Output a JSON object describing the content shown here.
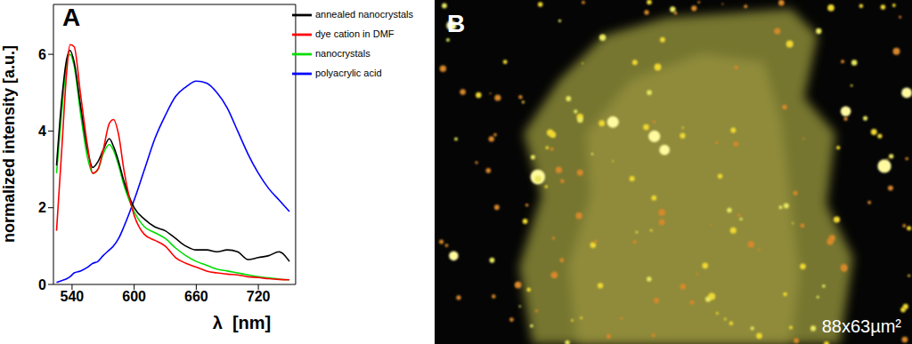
{
  "chart_data": {
    "type": "line",
    "title": "A",
    "x_label": "λ  [nm]",
    "y_label": "normalized intensity [a.u.]",
    "x": [
      525,
      530,
      535,
      538,
      542,
      548,
      555,
      560,
      565,
      570,
      576,
      580,
      585,
      590,
      600,
      610,
      620,
      630,
      640,
      650,
      660,
      670,
      680,
      690,
      700,
      710,
      720,
      730,
      740,
      750
    ],
    "xlim": [
      522,
      756
    ],
    "xticks": [
      540,
      600,
      660,
      720
    ],
    "ylim": [
      0,
      7.3
    ],
    "yticks": [
      0,
      2,
      4,
      6
    ],
    "legend": "upper right",
    "series": [
      {
        "name": "polyacrylic acid",
        "color": "#0000ff",
        "values": [
          0.05,
          0.1,
          0.15,
          0.2,
          0.3,
          0.35,
          0.45,
          0.55,
          0.6,
          0.75,
          0.9,
          1.0,
          1.2,
          1.5,
          2.2,
          3.0,
          3.8,
          4.4,
          4.9,
          5.15,
          5.3,
          5.25,
          5.0,
          4.6,
          4.0,
          3.4,
          2.9,
          2.5,
          2.2,
          1.9
        ]
      },
      {
        "name": "nanocrystals",
        "color": "#00dd00",
        "values": [
          2.9,
          4.5,
          5.8,
          6.0,
          5.7,
          4.5,
          3.3,
          2.9,
          3.0,
          3.4,
          3.65,
          3.5,
          3.1,
          2.6,
          1.9,
          1.5,
          1.35,
          1.2,
          0.95,
          0.75,
          0.6,
          0.5,
          0.4,
          0.35,
          0.3,
          0.25,
          0.2,
          0.17,
          0.14,
          0.12
        ]
      },
      {
        "name": "annealed nanocrystals",
        "color": "#000000",
        "values": [
          3.1,
          4.8,
          5.9,
          6.1,
          5.8,
          4.7,
          3.5,
          3.05,
          3.2,
          3.5,
          3.8,
          3.6,
          3.2,
          2.7,
          2.0,
          1.7,
          1.5,
          1.4,
          1.2,
          1.0,
          0.9,
          0.9,
          0.85,
          0.9,
          0.85,
          0.65,
          0.7,
          0.75,
          0.85,
          0.6
        ]
      },
      {
        "name": "dye cation in DMF",
        "color": "#ff0000",
        "values": [
          1.4,
          3.5,
          5.6,
          6.25,
          6.2,
          5.0,
          3.6,
          2.9,
          3.0,
          3.5,
          4.2,
          4.3,
          3.9,
          3.0,
          1.8,
          1.3,
          1.15,
          1.0,
          0.7,
          0.55,
          0.45,
          0.35,
          0.3,
          0.27,
          0.25,
          0.2,
          0.18,
          0.15,
          0.13,
          0.12
        ]
      }
    ]
  },
  "panel_b": {
    "label": "B",
    "scale_text": "88x63µm²"
  }
}
